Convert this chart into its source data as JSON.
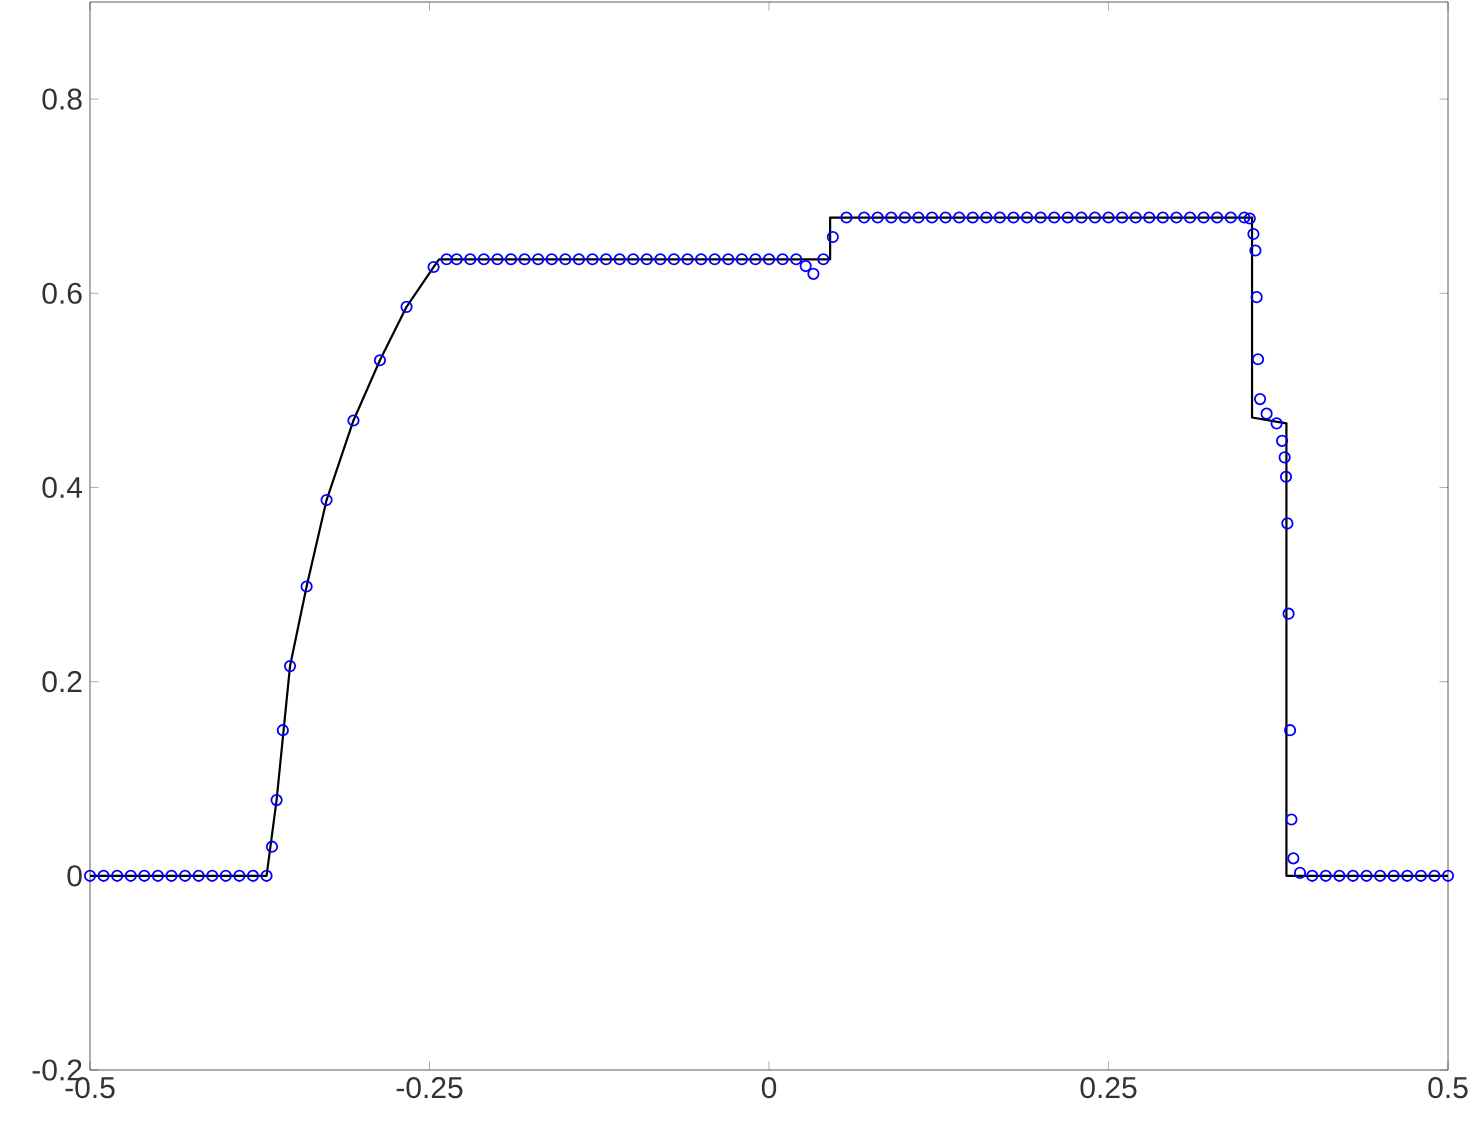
{
  "chart_data": {
    "type": "line",
    "xlim": [
      -0.5,
      0.5
    ],
    "ylim": [
      -0.2,
      0.9
    ],
    "xticks": [
      -0.5,
      -0.25,
      0,
      0.25,
      0.5
    ],
    "yticks": [
      -0.2,
      0,
      0.2,
      0.4,
      0.6,
      0.8
    ],
    "grid": false,
    "series": [
      {
        "color": "#000000",
        "marker": "none",
        "x": [
          -0.5,
          -0.37,
          -0.3626,
          -0.3527,
          -0.3405,
          -0.3258,
          -0.306,
          -0.2865,
          -0.2669,
          -0.247,
          -0.243,
          0.045,
          0.045,
          0.3557,
          0.3557,
          0.381,
          0.381,
          0.5
        ],
        "values": [
          0,
          0,
          0.078,
          0.216,
          0.298,
          0.387,
          0.469,
          0.531,
          0.586,
          0.627,
          0.635,
          0.635,
          0.678,
          0.678,
          0.472,
          0.466,
          0,
          0
        ]
      },
      {
        "type": "scatter",
        "color": "#0000ff",
        "marker": "circle",
        "x": [
          -0.5,
          -0.49,
          -0.48,
          -0.47,
          -0.46,
          -0.45,
          -0.44,
          -0.43,
          -0.42,
          -0.41,
          -0.4,
          -0.39,
          -0.38,
          -0.37,
          -0.366,
          -0.3626,
          -0.358,
          -0.3527,
          -0.3405,
          -0.3258,
          -0.306,
          -0.2865,
          -0.2669,
          -0.247,
          -0.2374,
          -0.23,
          -0.22,
          -0.21,
          -0.2,
          -0.19,
          -0.18,
          -0.17,
          -0.16,
          -0.15,
          -0.14,
          -0.13,
          -0.12,
          -0.11,
          -0.1,
          -0.09,
          -0.08,
          -0.07,
          -0.06,
          -0.05,
          -0.04,
          -0.03,
          -0.02,
          -0.01,
          0,
          0.01,
          0.02,
          0.027,
          0.0327,
          0.04,
          0.047,
          0.057,
          0.07,
          0.08,
          0.09,
          0.1,
          0.11,
          0.12,
          0.13,
          0.14,
          0.15,
          0.16,
          0.17,
          0.18,
          0.19,
          0.2,
          0.21,
          0.22,
          0.23,
          0.24,
          0.25,
          0.26,
          0.27,
          0.28,
          0.29,
          0.3,
          0.31,
          0.32,
          0.33,
          0.34,
          0.35,
          0.354,
          0.3567,
          0.3582,
          0.3591,
          0.3601,
          0.3616,
          0.3664,
          0.3738,
          0.3778,
          0.3797,
          0.3807,
          0.3817,
          0.3826,
          0.3837,
          0.3847,
          0.3861,
          0.391,
          0.4,
          0.41,
          0.42,
          0.43,
          0.44,
          0.45,
          0.46,
          0.47,
          0.48,
          0.49,
          0.5
        ],
        "values": [
          0,
          0,
          0,
          0,
          0,
          0,
          0,
          0,
          0,
          0,
          0,
          0,
          0,
          0,
          0.03,
          0.078,
          0.15,
          0.216,
          0.298,
          0.387,
          0.469,
          0.531,
          0.586,
          0.627,
          0.635,
          0.635,
          0.635,
          0.635,
          0.635,
          0.635,
          0.635,
          0.635,
          0.635,
          0.635,
          0.635,
          0.635,
          0.635,
          0.635,
          0.635,
          0.635,
          0.635,
          0.635,
          0.635,
          0.635,
          0.635,
          0.635,
          0.635,
          0.635,
          0.635,
          0.635,
          0.635,
          0.628,
          0.62,
          0.635,
          0.658,
          0.678,
          0.678,
          0.678,
          0.678,
          0.678,
          0.678,
          0.678,
          0.678,
          0.678,
          0.678,
          0.678,
          0.678,
          0.678,
          0.678,
          0.678,
          0.678,
          0.678,
          0.678,
          0.678,
          0.678,
          0.678,
          0.678,
          0.678,
          0.678,
          0.678,
          0.678,
          0.678,
          0.678,
          0.678,
          0.678,
          0.677,
          0.661,
          0.644,
          0.596,
          0.532,
          0.491,
          0.476,
          0.466,
          0.448,
          0.431,
          0.411,
          0.363,
          0.27,
          0.15,
          0.058,
          0.018,
          0.003,
          0,
          0,
          0,
          0,
          0,
          0,
          0,
          0,
          0,
          0,
          0
        ]
      }
    ]
  }
}
